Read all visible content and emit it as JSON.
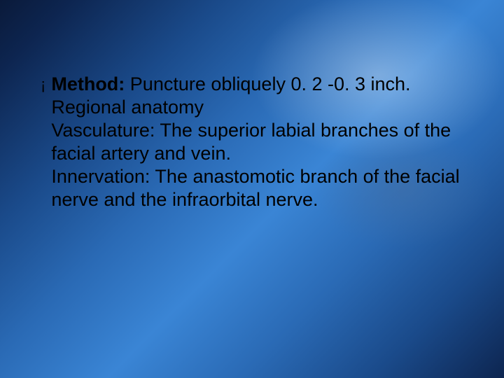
{
  "slide": {
    "background": {
      "gradient_colors": [
        "#0a1a3a",
        "#0d2550",
        "#1a4a8a",
        "#2a6ab5",
        "#3a85d5"
      ],
      "highlight_color": "#ffffff"
    },
    "text_color": "#000000",
    "font_family": "Arial",
    "font_size_pt": 20,
    "bullet_glyph": "¡",
    "lines": {
      "method_label": "Method:",
      "method_text": " Puncture obliquely 0. 2 -0. 3 inch.",
      "regional": "Regional anatomy",
      "vasc_label": "Vasculature:",
      "vasc_text": " The superior labial branches of the facial artery and vein.",
      "innerv_label": "Innervation:",
      "innerv_text": " The anastomotic branch of the facial nerve and the infraorbital nerve."
    }
  }
}
